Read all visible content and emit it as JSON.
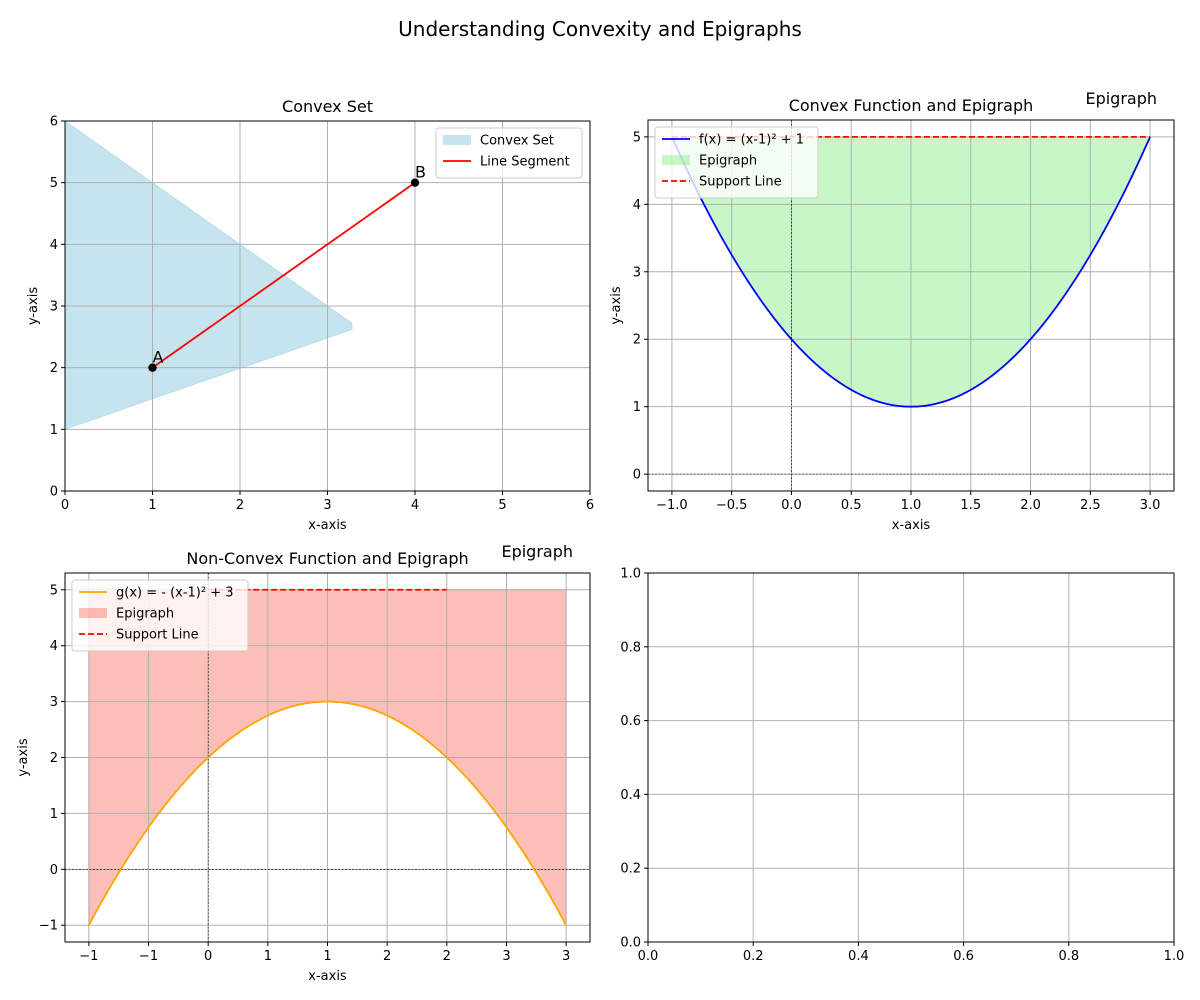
{
  "figure": {
    "title": "Understanding Convexity and Epigraphs"
  },
  "chart_data": [
    {
      "id": "convex-set",
      "type": "area",
      "title": "Convex Set",
      "xlabel": "x-axis",
      "ylabel": "y-axis",
      "xlim": [
        0,
        6
      ],
      "ylim": [
        0,
        6
      ],
      "xticks": [
        0,
        1,
        2,
        3,
        4,
        5,
        6
      ],
      "yticks": [
        0,
        1,
        2,
        3,
        4,
        5,
        6
      ],
      "grid": true,
      "legend": "upper-right",
      "polygon": {
        "name": "Convex Set",
        "color": "#add8e6",
        "points": [
          [
            0,
            6
          ],
          [
            3.28,
            2.72
          ],
          [
            3.28,
            2.62
          ],
          [
            0,
            1
          ]
        ]
      },
      "segment": {
        "name": "Line Segment",
        "color": "#ff0000",
        "points": [
          [
            1,
            2
          ],
          [
            4,
            5
          ]
        ],
        "labels": [
          "A",
          "B"
        ]
      }
    },
    {
      "id": "convex-function",
      "type": "line",
      "title": "Convex Function and Epigraph",
      "annotation": "Epigraph",
      "xlabel": "x-axis",
      "ylabel": "y-axis",
      "xlim": [
        -1.2,
        3.2
      ],
      "ylim": [
        -0.25,
        5.25
      ],
      "xticks": [
        -1.0,
        -0.5,
        0.0,
        0.5,
        1.0,
        1.5,
        2.0,
        2.5,
        3.0
      ],
      "yticks": [
        0,
        1,
        2,
        3,
        4,
        5
      ],
      "grid": true,
      "legend": "upper-left",
      "function": {
        "name": "f(x) = (x-1)² + 1",
        "color": "#0000ff",
        "a": 1,
        "h": 1,
        "k": 1,
        "domain": [
          -1,
          3
        ]
      },
      "fill": {
        "name": "Epigraph",
        "color": "#90ee90",
        "to": 5
      },
      "support_line": {
        "name": "Support Line",
        "color": "#ff0000",
        "y": 5,
        "x_range": [
          -1,
          3
        ]
      }
    },
    {
      "id": "non-convex-function",
      "type": "line",
      "title": "Non-Convex Function and Epigraph",
      "annotation": "Epigraph",
      "xlabel": "x-axis",
      "ylabel": "y-axis",
      "xlim": [
        -1.2,
        3.2
      ],
      "ylim": [
        -1.3,
        5.3
      ],
      "xticks": [
        -1.0,
        -0.5,
        0.0,
        0.5,
        1.0,
        1.5,
        2.0,
        2.5,
        3.0
      ],
      "yticks": [
        -1,
        0,
        1,
        2,
        3,
        4,
        5
      ],
      "grid": true,
      "legend": "upper-left",
      "function": {
        "name": "g(x) = - (x-1)² + 3",
        "color": "#ffa500",
        "a": -1,
        "h": 1,
        "k": 3,
        "domain": [
          -1,
          3
        ]
      },
      "fill": {
        "name": "Epigraph",
        "color": "#fa8072",
        "to": 5
      },
      "support_line": {
        "name": "Support Line",
        "color": "#ff0000",
        "y": 5,
        "x_range": [
          0,
          2
        ]
      }
    },
    {
      "id": "empty-axes",
      "type": "line",
      "title": "",
      "xlim": [
        0,
        1
      ],
      "ylim": [
        0,
        1
      ],
      "xticks": [
        0.0,
        0.2,
        0.4,
        0.6,
        0.8,
        1.0
      ],
      "yticks": [
        0.0,
        0.2,
        0.4,
        0.6,
        0.8,
        1.0
      ],
      "grid": true
    }
  ]
}
